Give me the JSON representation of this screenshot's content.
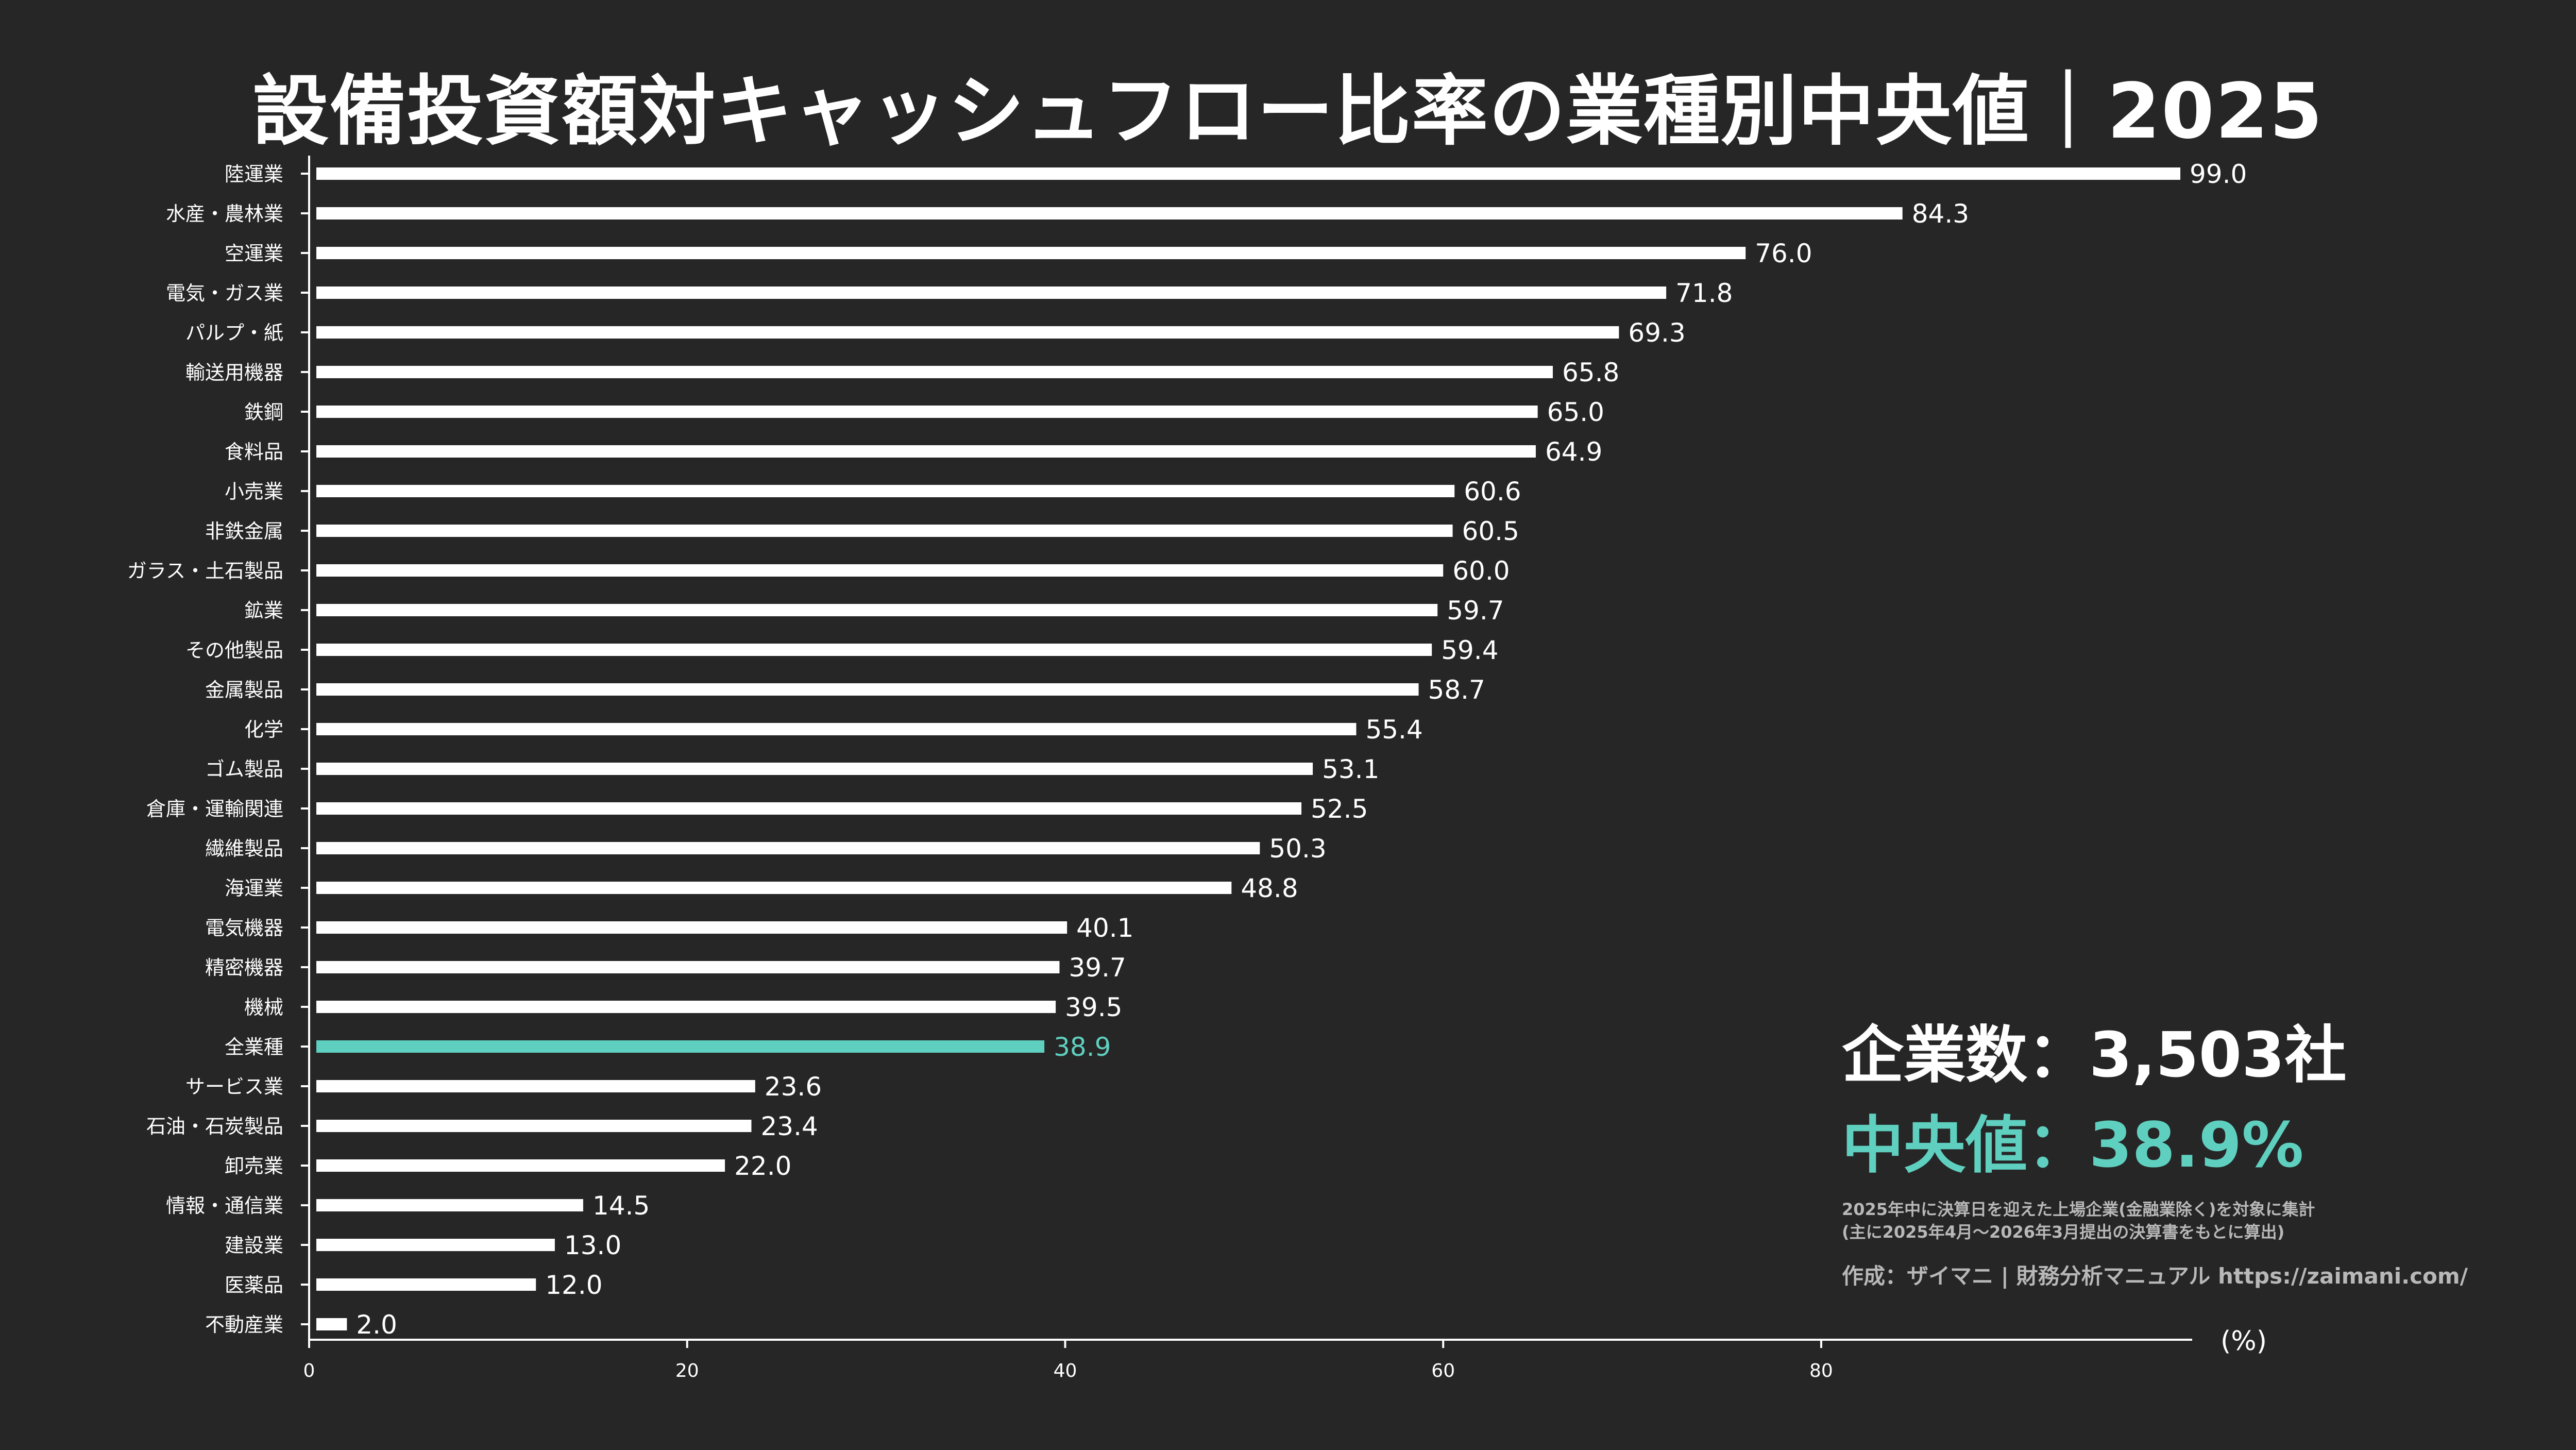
{
  "colors": {
    "bar": "#ffffff",
    "highlight": "#5fcfbf",
    "background": "#262626"
  },
  "info": {
    "count_label": "企業数：3,503社",
    "median_label": "中央値：38.9%",
    "note_line1": "2025年中に決算日を迎えた上場企業(金融業除く)を対象に集計",
    "note_line2": "(主に2025年4月〜2026年3月提出の決算書をもとに算出)",
    "credit": "作成：ザイマニ | 財務分析マニュアル https://zaimani.com/"
  },
  "chart_data": {
    "type": "bar",
    "orientation": "horizontal",
    "title": "設備投資額対キャッシュフロー比率の業種別中央値｜2025",
    "xlabel": "",
    "ylabel": "",
    "unit_label": "(%)",
    "xlim": [
      0,
      99
    ],
    "xticks": [
      0,
      20,
      40,
      60,
      80
    ],
    "grid": false,
    "highlight_category": "全業種",
    "categories": [
      "陸運業",
      "水産・農林業",
      "空運業",
      "電気・ガス業",
      "パルプ・紙",
      "輸送用機器",
      "鉄鋼",
      "食料品",
      "小売業",
      "非鉄金属",
      "ガラス・土石製品",
      "鉱業",
      "その他製品",
      "金属製品",
      "化学",
      "ゴム製品",
      "倉庫・運輸関連",
      "繊維製品",
      "海運業",
      "電気機器",
      "精密機器",
      "機械",
      "全業種",
      "サービス業",
      "石油・石炭製品",
      "卸売業",
      "情報・通信業",
      "建設業",
      "医薬品",
      "不動産業"
    ],
    "values": [
      99.0,
      84.3,
      76.0,
      71.8,
      69.3,
      65.8,
      65.0,
      64.9,
      60.6,
      60.5,
      60.0,
      59.7,
      59.4,
      58.7,
      55.4,
      53.1,
      52.5,
      50.3,
      48.8,
      40.1,
      39.7,
      39.5,
      38.9,
      23.6,
      23.4,
      22.0,
      14.5,
      13.0,
      12.0,
      2.0
    ],
    "value_labels": [
      "99.0",
      "84.3",
      "76.0",
      "71.8",
      "69.3",
      "65.8",
      "65.0",
      "64.9",
      "60.6",
      "60.5",
      "60.0",
      "59.7",
      "59.4",
      "58.7",
      "55.4",
      "53.1",
      "52.5",
      "50.3",
      "48.8",
      "40.1",
      "39.7",
      "39.5",
      "38.9",
      "23.6",
      "23.4",
      "22.0",
      "14.5",
      "13.0",
      "12.0",
      "2.0"
    ]
  }
}
